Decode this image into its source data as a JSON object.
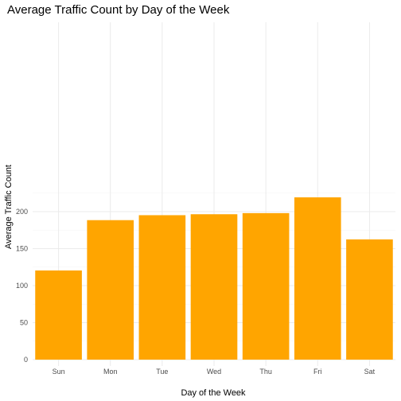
{
  "chart_data": {
    "type": "bar",
    "title": "Average Traffic Count by Day of the Week",
    "xlabel": "Day of the Week",
    "ylabel": "Average Traffic Count",
    "categories": [
      "Sun",
      "Mon",
      "Tue",
      "Wed",
      "Thu",
      "Fri",
      "Sat"
    ],
    "values": [
      120.5,
      188.5,
      195.2,
      196.5,
      198.0,
      219.3,
      162.5
    ],
    "ylim": [
      0,
      230
    ],
    "yticks": [
      0,
      50,
      100,
      150,
      200
    ],
    "grid": true,
    "bar_color": "#FFA500"
  }
}
